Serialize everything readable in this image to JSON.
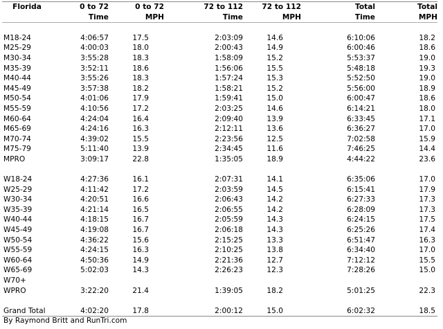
{
  "table": {
    "headers_row1": [
      "Florida",
      "0 to 72",
      "0 to 72",
      "72 to 112",
      "72 to 112",
      "Total",
      "Total"
    ],
    "headers_row2": [
      "",
      "Time",
      "MPH",
      "Time",
      "MPH",
      "Time",
      "MPH"
    ],
    "men": [
      {
        "label": "M18-24",
        "t1": "4:06:57",
        "m1": "17.5",
        "t2": "2:03:09",
        "m2": "14.6",
        "tt": "6:10:06",
        "tm": "18.2"
      },
      {
        "label": "M25-29",
        "t1": "4:00:03",
        "m1": "18.0",
        "t2": "2:00:43",
        "m2": "14.9",
        "tt": "6:00:46",
        "tm": "18.6"
      },
      {
        "label": "M30-34",
        "t1": "3:55:28",
        "m1": "18.3",
        "t2": "1:58:09",
        "m2": "15.2",
        "tt": "5:53:37",
        "tm": "19.0"
      },
      {
        "label": "M35-39",
        "t1": "3:52:11",
        "m1": "18.6",
        "t2": "1:56:06",
        "m2": "15.5",
        "tt": "5:48:18",
        "tm": "19.3"
      },
      {
        "label": "M40-44",
        "t1": "3:55:26",
        "m1": "18.3",
        "t2": "1:57:24",
        "m2": "15.3",
        "tt": "5:52:50",
        "tm": "19.0"
      },
      {
        "label": "M45-49",
        "t1": "3:57:38",
        "m1": "18.2",
        "t2": "1:58:21",
        "m2": "15.2",
        "tt": "5:56:00",
        "tm": "18.9"
      },
      {
        "label": "M50-54",
        "t1": "4:01:06",
        "m1": "17.9",
        "t2": "1:59:41",
        "m2": "15.0",
        "tt": "6:00:47",
        "tm": "18.6"
      },
      {
        "label": "M55-59",
        "t1": "4:10:56",
        "m1": "17.2",
        "t2": "2:03:25",
        "m2": "14.6",
        "tt": "6:14:21",
        "tm": "18.0"
      },
      {
        "label": "M60-64",
        "t1": "4:24:04",
        "m1": "16.4",
        "t2": "2:09:40",
        "m2": "13.9",
        "tt": "6:33:45",
        "tm": "17.1"
      },
      {
        "label": "M65-69",
        "t1": "4:24:16",
        "m1": "16.3",
        "t2": "2:12:11",
        "m2": "13.6",
        "tt": "6:36:27",
        "tm": "17.0"
      },
      {
        "label": "M70-74",
        "t1": "4:39:02",
        "m1": "15.5",
        "t2": "2:23:56",
        "m2": "12.5",
        "tt": "7:02:58",
        "tm": "15.9"
      },
      {
        "label": "M75-79",
        "t1": "5:11:40",
        "m1": "13.9",
        "t2": "2:34:45",
        "m2": "11.6",
        "tt": "7:46:25",
        "tm": "14.4"
      },
      {
        "label": "MPRO",
        "t1": "3:09:17",
        "m1": "22.8",
        "t2": "1:35:05",
        "m2": "18.9",
        "tt": "4:44:22",
        "tm": "23.6"
      }
    ],
    "women": [
      {
        "label": "W18-24",
        "t1": "4:27:36",
        "m1": "16.1",
        "t2": "2:07:31",
        "m2": "14.1",
        "tt": "6:35:06",
        "tm": "17.0"
      },
      {
        "label": "W25-29",
        "t1": "4:11:42",
        "m1": "17.2",
        "t2": "2:03:59",
        "m2": "14.5",
        "tt": "6:15:41",
        "tm": "17.9"
      },
      {
        "label": "W30-34",
        "t1": "4:20:51",
        "m1": "16.6",
        "t2": "2:06:43",
        "m2": "14.2",
        "tt": "6:27:33",
        "tm": "17.3"
      },
      {
        "label": "W35-39",
        "t1": "4:21:14",
        "m1": "16.5",
        "t2": "2:06:55",
        "m2": "14.2",
        "tt": "6:28:09",
        "tm": "17.3"
      },
      {
        "label": "W40-44",
        "t1": "4:18:15",
        "m1": "16.7",
        "t2": "2:05:59",
        "m2": "14.3",
        "tt": "6:24:15",
        "tm": "17.5"
      },
      {
        "label": "W45-49",
        "t1": "4:19:08",
        "m1": "16.7",
        "t2": "2:06:18",
        "m2": "14.3",
        "tt": "6:25:26",
        "tm": "17.4"
      },
      {
        "label": "W50-54",
        "t1": "4:36:22",
        "m1": "15.6",
        "t2": "2:15:25",
        "m2": "13.3",
        "tt": "6:51:47",
        "tm": "16.3"
      },
      {
        "label": "W55-59",
        "t1": "4:24:15",
        "m1": "16.3",
        "t2": "2:10:25",
        "m2": "13.8",
        "tt": "6:34:40",
        "tm": "17.0"
      },
      {
        "label": "W60-64",
        "t1": "4:50:36",
        "m1": "14.9",
        "t2": "2:21:36",
        "m2": "12.7",
        "tt": "7:12:12",
        "tm": "15.5"
      },
      {
        "label": "W65-69",
        "t1": "5:02:03",
        "m1": "14.3",
        "t2": "2:26:23",
        "m2": "12.3",
        "tt": "7:28:26",
        "tm": "15.0"
      },
      {
        "label": "W70+",
        "t1": "",
        "m1": "",
        "t2": "",
        "m2": "",
        "tt": "",
        "tm": ""
      },
      {
        "label": "WPRO",
        "t1": "3:22:20",
        "m1": "21.4",
        "t2": "1:39:05",
        "m2": "18.2",
        "tt": "5:01:25",
        "tm": "22.3"
      }
    ],
    "grand_total": {
      "label": "Grand Total",
      "t1": "4:02:20",
      "m1": "17.8",
      "t2": "2:00:12",
      "m2": "15.0",
      "tt": "6:02:32",
      "tm": "18.5"
    }
  },
  "credit": "By Raymond Britt and RunTri.com"
}
